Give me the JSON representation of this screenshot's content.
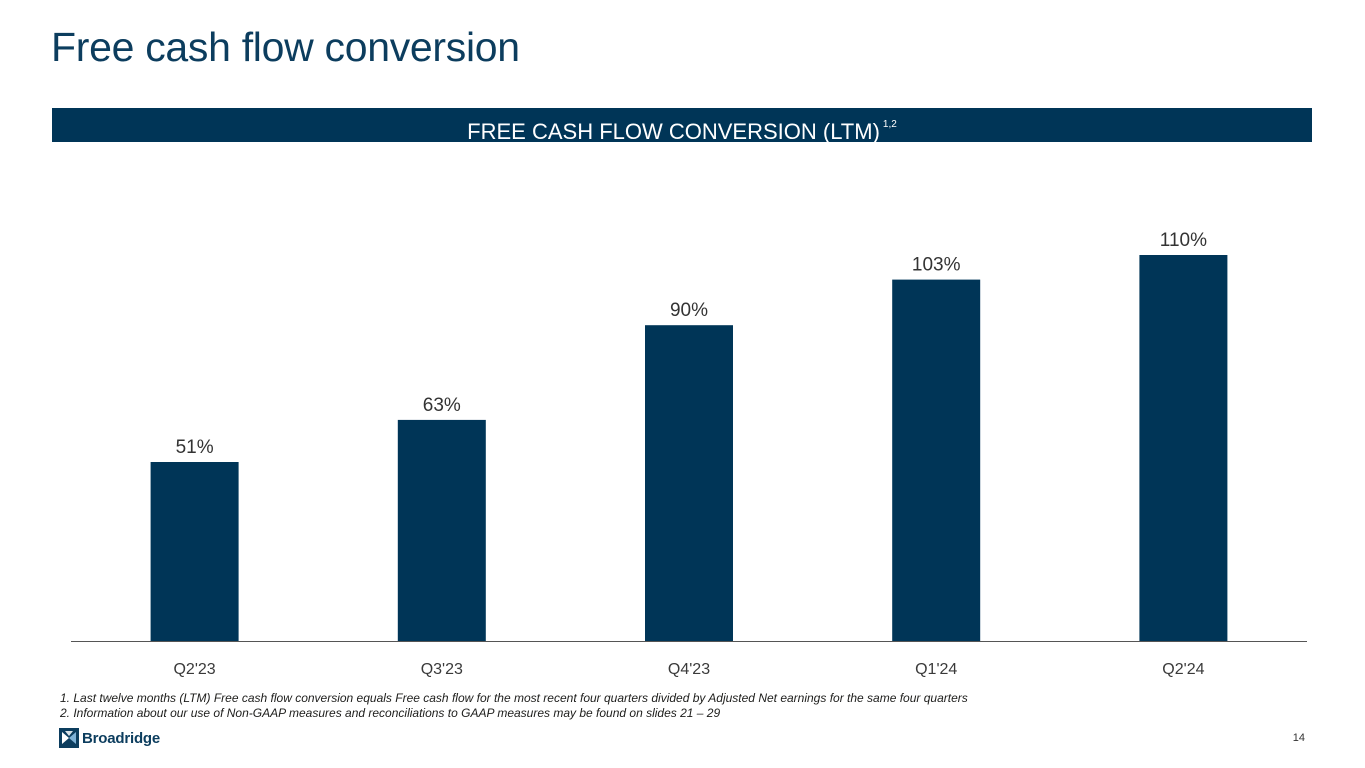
{
  "slide": {
    "title": "Free cash flow conversion",
    "banner_title": "FREE CASH FLOW CONVERSION (LTM)",
    "banner_superscript": "1,2",
    "page_number": "14"
  },
  "footnotes": [
    "1. Last twelve months (LTM) Free cash flow conversion equals Free cash flow for the most recent four quarters divided by Adjusted Net earnings for the same four quarters",
    "2. Information about our use of Non-GAAP measures and reconciliations to GAAP measures may be found on slides 21 – 29"
  ],
  "logo": {
    "icon": "broadridge-logo-icon",
    "text": "Broadridge",
    "trademark": "·"
  },
  "chart_data": {
    "type": "bar",
    "categories": [
      "Q2'23",
      "Q3'23",
      "Q4'23",
      "Q1'24",
      "Q2'24"
    ],
    "values": [
      51,
      63,
      90,
      103,
      110
    ],
    "data_labels": [
      "51%",
      "63%",
      "90%",
      "103%",
      "110%"
    ],
    "title": "FREE CASH FLOW CONVERSION (LTM)",
    "xlabel": "",
    "ylabel": "",
    "ylim": [
      0,
      110
    ],
    "grid": false,
    "legend": "none",
    "bar_color": "#003557"
  },
  "colors": {
    "brand_navy": "#003557",
    "title_blue": "#0c3d5e"
  }
}
